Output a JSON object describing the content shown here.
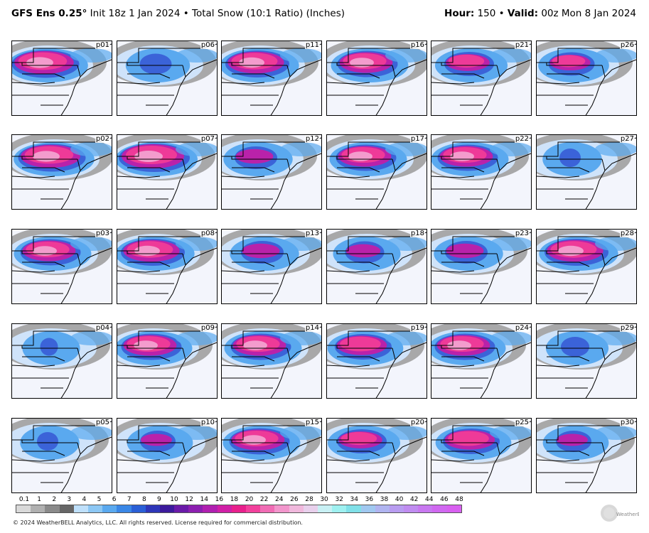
{
  "header": {
    "model": "GFS Ens 0.25°",
    "init": "Init 18z 1 Jan 2024",
    "sep": "•",
    "product": "Total Snow (10:1 Ratio) (Inches)",
    "hour_label": "Hour:",
    "hour_value": "150",
    "valid_label": "Valid:",
    "valid_value": "00z Mon 8 Jan 2024"
  },
  "panels": [
    {
      "label": "p01",
      "intensity": 0.95
    },
    {
      "label": "p06",
      "intensity": 0.45
    },
    {
      "label": "p11",
      "intensity": 0.9
    },
    {
      "label": "p16",
      "intensity": 0.85
    },
    {
      "label": "p21",
      "intensity": 0.7
    },
    {
      "label": "p26",
      "intensity": 0.65
    },
    {
      "label": "p02",
      "intensity": 0.95
    },
    {
      "label": "p07",
      "intensity": 1.0
    },
    {
      "label": "p12",
      "intensity": 0.6
    },
    {
      "label": "p17",
      "intensity": 0.85
    },
    {
      "label": "p22",
      "intensity": 0.85
    },
    {
      "label": "p27",
      "intensity": 0.3
    },
    {
      "label": "p03",
      "intensity": 0.85
    },
    {
      "label": "p08",
      "intensity": 0.9
    },
    {
      "label": "p13",
      "intensity": 0.6
    },
    {
      "label": "p18",
      "intensity": 0.55
    },
    {
      "label": "p23",
      "intensity": 0.6
    },
    {
      "label": "p28",
      "intensity": 0.9
    },
    {
      "label": "p04",
      "intensity": 0.25
    },
    {
      "label": "p09",
      "intensity": 0.85
    },
    {
      "label": "p14",
      "intensity": 0.85
    },
    {
      "label": "p19",
      "intensity": 0.8
    },
    {
      "label": "p24",
      "intensity": 0.85
    },
    {
      "label": "p29",
      "intensity": 0.4
    },
    {
      "label": "p05",
      "intensity": 0.3
    },
    {
      "label": "p10",
      "intensity": 0.5
    },
    {
      "label": "p15",
      "intensity": 0.85
    },
    {
      "label": "p20",
      "intensity": 0.7
    },
    {
      "label": "p25",
      "intensity": 0.8
    },
    {
      "label": "p30",
      "intensity": 0.5
    }
  ],
  "colorbar": {
    "ticks": [
      "0.1",
      "1",
      "2",
      "3",
      "4",
      "5",
      "6",
      "7",
      "8",
      "9",
      "10",
      "12",
      "14",
      "16",
      "18",
      "20",
      "22",
      "24",
      "26",
      "28",
      "30",
      "32",
      "34",
      "36",
      "38",
      "40",
      "42",
      "44",
      "46",
      "48"
    ],
    "colors": [
      "#d9d9d9",
      "#b0b0b0",
      "#8a8a8a",
      "#666666",
      "#bfe0fb",
      "#8cc7f4",
      "#5aa9ef",
      "#3a87e6",
      "#2a5fd6",
      "#2e36b8",
      "#3c1a9c",
      "#6a1aa8",
      "#8c1fb0",
      "#b01fb0",
      "#d01fa6",
      "#e8208c",
      "#f2409c",
      "#f06cb4",
      "#f296cc",
      "#f0b8dc",
      "#e8d0ec",
      "#c8f0f4",
      "#9ef0f0",
      "#80e0e8",
      "#a0c8f0",
      "#b0b4f0",
      "#b89cf0",
      "#c08cf0",
      "#c878f0",
      "#d068f0",
      "#d860f0"
    ]
  },
  "footer": {
    "copyright": "© 2024 WeatherBELL Analytics, LLC. All rights reserved. License required for commercial distribution."
  },
  "logo": {
    "text": "WeatherBELL"
  }
}
